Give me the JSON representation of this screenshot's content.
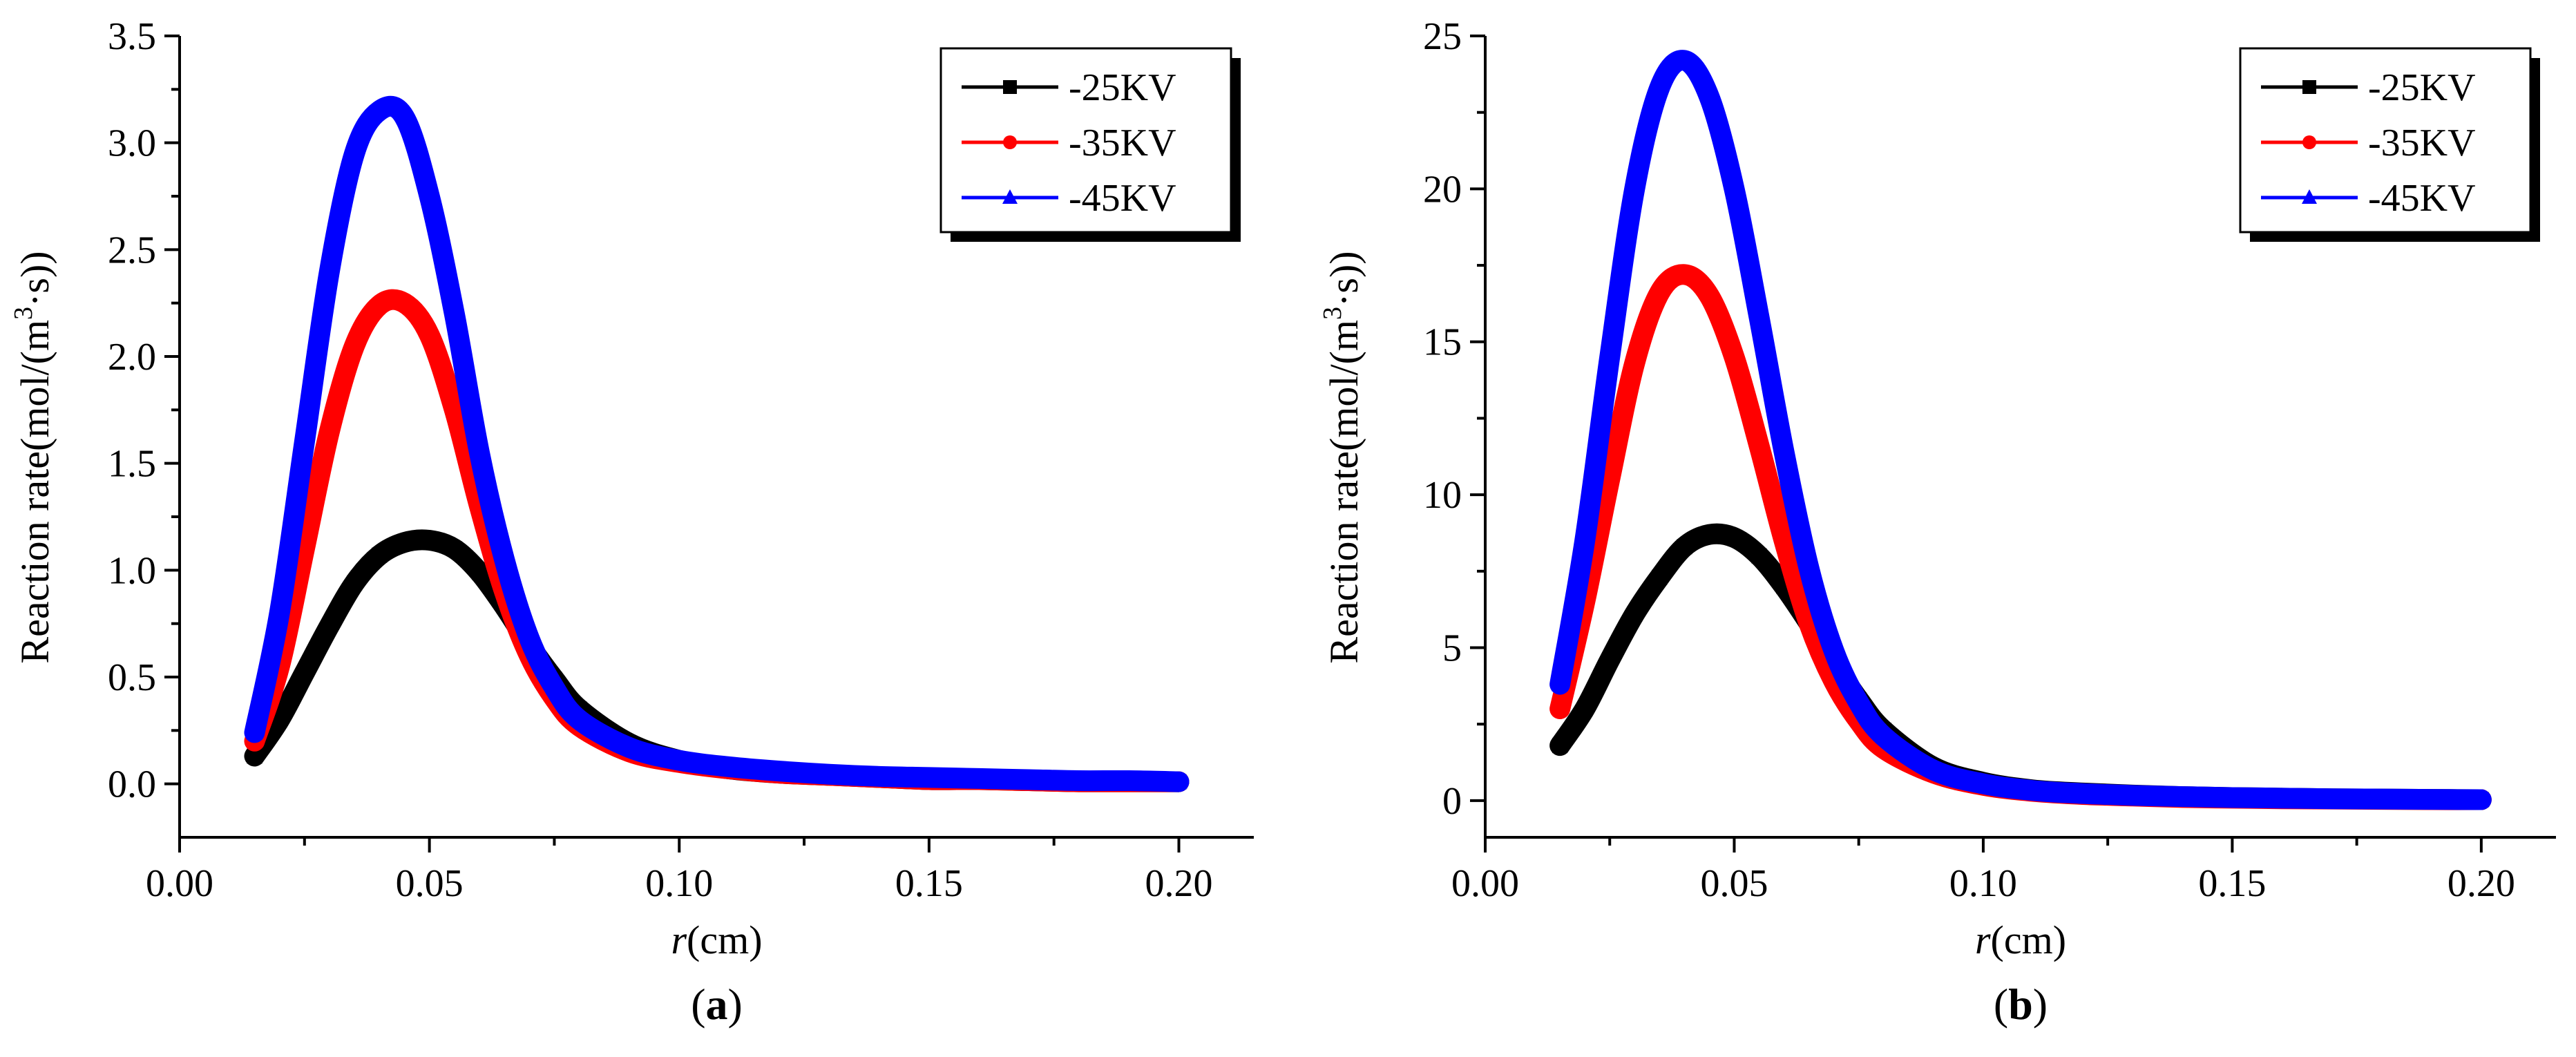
{
  "chart_data": [
    {
      "type": "line",
      "panel_label": "a",
      "xlabel_italic": "r",
      "xlabel_unit": "(cm)",
      "ylabel_main": "Reaction rate(mol/(m",
      "ylabel_sup": "3",
      "ylabel_tail": "·s))",
      "xlim": [
        0.0,
        0.215
      ],
      "ylim": [
        -0.25,
        3.5
      ],
      "xticks": [
        0.0,
        0.05,
        0.1,
        0.15,
        0.2
      ],
      "xtick_labels": [
        "0.00",
        "0.05",
        "0.10",
        "0.15",
        "0.20"
      ],
      "yticks": [
        0.0,
        0.5,
        1.0,
        1.5,
        2.0,
        2.5,
        3.0,
        3.5
      ],
      "ytick_labels": [
        "0.0",
        "0.5",
        "1.0",
        "1.5",
        "2.0",
        "2.5",
        "3.0",
        "3.5"
      ],
      "legend_position": "top-right",
      "x": [
        0.015,
        0.02,
        0.025,
        0.03,
        0.035,
        0.04,
        0.045,
        0.05,
        0.055,
        0.06,
        0.065,
        0.07,
        0.075,
        0.08,
        0.09,
        0.1,
        0.11,
        0.12,
        0.13,
        0.14,
        0.15,
        0.16,
        0.17,
        0.18,
        0.19,
        0.2
      ],
      "series": [
        {
          "name": "-25KV",
          "color": "#000000",
          "marker": "square",
          "values": [
            0.13,
            0.3,
            0.52,
            0.74,
            0.94,
            1.07,
            1.13,
            1.14,
            1.1,
            0.99,
            0.83,
            0.65,
            0.49,
            0.35,
            0.19,
            0.11,
            0.07,
            0.05,
            0.04,
            0.03,
            0.02,
            0.02,
            0.015,
            0.01,
            0.01,
            0.01
          ]
        },
        {
          "name": "-35KV",
          "color": "#ff0000",
          "marker": "circle",
          "values": [
            0.2,
            0.55,
            1.1,
            1.65,
            2.05,
            2.24,
            2.25,
            2.1,
            1.75,
            1.3,
            0.9,
            0.6,
            0.4,
            0.27,
            0.15,
            0.1,
            0.07,
            0.05,
            0.04,
            0.03,
            0.02,
            0.02,
            0.015,
            0.01,
            0.01,
            0.01
          ]
        },
        {
          "name": "-45KV",
          "color": "#0000ff",
          "marker": "triangle",
          "values": [
            0.24,
            0.8,
            1.6,
            2.4,
            2.95,
            3.15,
            3.12,
            2.75,
            2.2,
            1.55,
            1.05,
            0.68,
            0.45,
            0.3,
            0.17,
            0.11,
            0.08,
            0.06,
            0.045,
            0.035,
            0.03,
            0.025,
            0.02,
            0.015,
            0.015,
            0.01
          ]
        }
      ]
    },
    {
      "type": "line",
      "panel_label": "b",
      "xlabel_italic": "r",
      "xlabel_unit": "(cm)",
      "ylabel_main": "Reaction rate(mol/(m",
      "ylabel_sup": "3",
      "ylabel_tail": "·s))",
      "xlim": [
        0.0,
        0.215
      ],
      "ylim": [
        -1.2,
        25
      ],
      "xticks": [
        0.0,
        0.05,
        0.1,
        0.15,
        0.2
      ],
      "xtick_labels": [
        "0.00",
        "0.05",
        "0.10",
        "0.15",
        "0.20"
      ],
      "yticks": [
        0,
        5,
        10,
        15,
        20,
        25
      ],
      "ytick_labels": [
        "0",
        "5",
        "10",
        "15",
        "20",
        "25"
      ],
      "legend_position": "top-right",
      "x": [
        0.015,
        0.02,
        0.025,
        0.03,
        0.035,
        0.04,
        0.045,
        0.05,
        0.055,
        0.06,
        0.065,
        0.07,
        0.075,
        0.08,
        0.09,
        0.1,
        0.11,
        0.12,
        0.13,
        0.14,
        0.15,
        0.16,
        0.17,
        0.18,
        0.19,
        0.2
      ],
      "series": [
        {
          "name": "-25KV",
          "color": "#000000",
          "marker": "square",
          "values": [
            1.8,
            3.0,
            4.6,
            6.1,
            7.3,
            8.3,
            8.7,
            8.6,
            8.0,
            7.0,
            5.8,
            4.5,
            3.3,
            2.3,
            1.1,
            0.6,
            0.35,
            0.25,
            0.18,
            0.13,
            0.1,
            0.08,
            0.06,
            0.05,
            0.04,
            0.03
          ]
        },
        {
          "name": "-35KV",
          "color": "#ff0000",
          "marker": "circle",
          "values": [
            3.0,
            6.5,
            10.5,
            14.3,
            16.6,
            17.2,
            16.5,
            14.5,
            11.6,
            8.5,
            5.8,
            3.9,
            2.6,
            1.7,
            0.9,
            0.5,
            0.3,
            0.2,
            0.15,
            0.1,
            0.08,
            0.06,
            0.05,
            0.04,
            0.03,
            0.03
          ]
        },
        {
          "name": "-45KV",
          "color": "#0000ff",
          "marker": "triangle",
          "values": [
            3.8,
            8.5,
            14.5,
            20.0,
            23.3,
            24.2,
            23.0,
            20.0,
            15.8,
            11.4,
            7.6,
            4.9,
            3.2,
            2.1,
            1.0,
            0.55,
            0.33,
            0.23,
            0.17,
            0.13,
            0.1,
            0.08,
            0.06,
            0.05,
            0.04,
            0.03
          ]
        }
      ]
    }
  ]
}
